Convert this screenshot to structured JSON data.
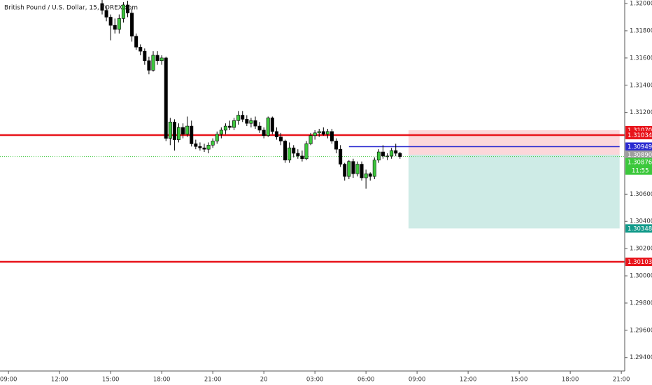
{
  "chart_data": {
    "type": "candlestick",
    "title": "British Pound / U.S. Dollar, 15, FOREX.com",
    "x": [
      14.5,
      14.75,
      15,
      15.25,
      15.5,
      15.75,
      16,
      16.25,
      16.5,
      16.75,
      17,
      17.25,
      17.5,
      17.75,
      18,
      18.25,
      18.5,
      18.75,
      19,
      19.25,
      19.5,
      19.75,
      20,
      20.25,
      20.5,
      20.75,
      21,
      21.25,
      21.5,
      21.75,
      22,
      22.25,
      22.5,
      22.75,
      23,
      23.25,
      23.5,
      23.75,
      24,
      24.25,
      24.5,
      24.75,
      25,
      25.25,
      25.5,
      25.75,
      26,
      26.25,
      26.5,
      26.75,
      27,
      27.25,
      27.5,
      27.75,
      28,
      28.25,
      28.5,
      28.75,
      29,
      29.25,
      29.5,
      29.75,
      30,
      30.25,
      30.5,
      30.75,
      31,
      31.25,
      31.5,
      31.75,
      32
    ],
    "open": [
      1.32,
      1.3195,
      1.319,
      1.3184,
      1.3181,
      1.3189,
      1.3199,
      1.3193,
      1.3176,
      1.3168,
      1.3165,
      1.3158,
      1.3151,
      1.3162,
      1.3158,
      1.316,
      1.3101,
      1.3113,
      1.31,
      1.3109,
      1.3104,
      1.311,
      1.3097,
      1.3095,
      1.3094,
      1.3093,
      1.3096,
      1.3099,
      1.3104,
      1.3107,
      1.311,
      1.3109,
      1.3114,
      1.3118,
      1.3115,
      1.3112,
      1.3114,
      1.311,
      1.3107,
      1.3103,
      1.3116,
      1.3106,
      1.3102,
      1.3099,
      1.3085,
      1.3094,
      1.309,
      1.3088,
      1.3086,
      1.3097,
      1.3103,
      1.3105,
      1.3106,
      1.3104,
      1.3106,
      1.3099,
      1.3093,
      1.3082,
      1.3073,
      1.3084,
      1.3075,
      1.3082,
      1.3072,
      1.3075,
      1.3073,
      1.3085,
      1.3091,
      1.3088,
      1.3088,
      1.3092,
      1.309
    ],
    "high": [
      1.3206,
      1.3198,
      1.3192,
      1.3189,
      1.3192,
      1.3201,
      1.3202,
      1.3196,
      1.3178,
      1.317,
      1.3167,
      1.3161,
      1.3165,
      1.3165,
      1.3162,
      1.3161,
      1.3116,
      1.3115,
      1.3112,
      1.3112,
      1.3117,
      1.3114,
      1.31,
      1.3098,
      1.3097,
      1.3098,
      1.3101,
      1.3106,
      1.3109,
      1.3112,
      1.3114,
      1.3116,
      1.3121,
      1.3121,
      1.3118,
      1.3116,
      1.3117,
      1.3113,
      1.3109,
      1.3117,
      1.3117,
      1.3109,
      1.3105,
      1.31,
      1.3098,
      1.3096,
      1.3093,
      1.3092,
      1.3099,
      1.3105,
      1.3107,
      1.3108,
      1.3109,
      1.3108,
      1.3108,
      1.3101,
      1.3096,
      1.3083,
      1.3085,
      1.3086,
      1.3084,
      1.3084,
      1.3078,
      1.3076,
      1.3087,
      1.3093,
      1.3096,
      1.309,
      1.3094,
      1.3097,
      1.3091
    ],
    "low": [
      1.3192,
      1.3187,
      1.3173,
      1.3178,
      1.3178,
      1.3186,
      1.319,
      1.3172,
      1.3166,
      1.3162,
      1.3155,
      1.3148,
      1.315,
      1.3155,
      1.3155,
      1.3099,
      1.3096,
      1.3092,
      1.3098,
      1.3101,
      1.3102,
      1.3095,
      1.3093,
      1.3092,
      1.3091,
      1.309,
      1.3094,
      1.3097,
      1.3101,
      1.3104,
      1.3107,
      1.3107,
      1.3111,
      1.3113,
      1.311,
      1.3109,
      1.3108,
      1.3105,
      1.3101,
      1.3102,
      1.3104,
      1.31,
      1.3096,
      1.3083,
      1.3083,
      1.3087,
      1.3086,
      1.3084,
      1.3085,
      1.3096,
      1.31,
      1.3102,
      1.3103,
      1.3101,
      1.3097,
      1.309,
      1.308,
      1.307,
      1.3071,
      1.3072,
      1.3073,
      1.307,
      1.3064,
      1.307,
      1.3071,
      1.3083,
      1.3086,
      1.3085,
      1.3086,
      1.3088,
      1.3086
    ],
    "close": [
      1.3195,
      1.319,
      1.3184,
      1.3181,
      1.3189,
      1.3199,
      1.3193,
      1.3176,
      1.3168,
      1.3165,
      1.3158,
      1.3151,
      1.3162,
      1.3158,
      1.316,
      1.3101,
      1.3113,
      1.31,
      1.3109,
      1.3104,
      1.311,
      1.3097,
      1.3095,
      1.3094,
      1.3093,
      1.3096,
      1.3099,
      1.3104,
      1.3107,
      1.311,
      1.3109,
      1.3114,
      1.3118,
      1.3115,
      1.3112,
      1.3114,
      1.311,
      1.3107,
      1.3103,
      1.3116,
      1.3106,
      1.3102,
      1.3099,
      1.3085,
      1.3094,
      1.309,
      1.3088,
      1.3086,
      1.3097,
      1.3103,
      1.3105,
      1.3106,
      1.3104,
      1.3106,
      1.3099,
      1.3093,
      1.3082,
      1.3073,
      1.3084,
      1.3075,
      1.3082,
      1.3072,
      1.3075,
      1.3073,
      1.3085,
      1.3091,
      1.3088,
      1.3088,
      1.3092,
      1.309,
      1.30876
    ],
    "up_color": "#3dc83d",
    "down_color": "#000000",
    "xlim": [
      8.5,
      45.2
    ],
    "ylim": [
      1.29301,
      1.32026
    ],
    "xticks": [
      {
        "value": 9,
        "label": "09:00"
      },
      {
        "value": 12,
        "label": "12:00"
      },
      {
        "value": 15,
        "label": "15:00"
      },
      {
        "value": 18,
        "label": "18:00"
      },
      {
        "value": 21,
        "label": "21:00"
      },
      {
        "value": 24,
        "label": "20"
      },
      {
        "value": 27,
        "label": "03:00"
      },
      {
        "value": 30,
        "label": "06:00"
      },
      {
        "value": 33,
        "label": "09:00"
      },
      {
        "value": 36,
        "label": "12:00"
      },
      {
        "value": 39,
        "label": "15:00"
      },
      {
        "value": 42,
        "label": "18:00"
      },
      {
        "value": 45,
        "label": "21:00"
      }
    ],
    "yticks": [
      {
        "value": 1.32,
        "label": "1.32000"
      },
      {
        "value": 1.318,
        "label": "1.31800"
      },
      {
        "value": 1.316,
        "label": "1.31600"
      },
      {
        "value": 1.314,
        "label": "1.31400"
      },
      {
        "value": 1.312,
        "label": "1.31200"
      },
      {
        "value": 1.306,
        "label": "1.30600"
      },
      {
        "value": 1.304,
        "label": "1.30400"
      },
      {
        "value": 1.302,
        "label": "1.30200"
      },
      {
        "value": 1.3,
        "label": "1.30000"
      },
      {
        "value": 1.298,
        "label": "1.29800"
      },
      {
        "value": 1.296,
        "label": "1.29600"
      },
      {
        "value": 1.294,
        "label": "1.29400"
      }
    ],
    "levels": [
      {
        "value": 1.31034,
        "color": "#e8141b"
      },
      {
        "value": 1.30103,
        "color": "#e8141b"
      }
    ],
    "entry_line": {
      "value": 1.30949,
      "x_start": 29.0,
      "color": "#2a2ad0"
    },
    "position": {
      "x_range": [
        32.5,
        44.9
      ],
      "stop": {
        "value": 1.3107,
        "label": "1.31070"
      },
      "entry": {
        "value": 1.3089,
        "label": "1.30890"
      },
      "target": 1.30348,
      "stop_color": "#e8141b",
      "entry_color": "#9e9e9e",
      "target_color": "#129a8a"
    },
    "current_price": {
      "value": 1.30876,
      "countdown": "11:55",
      "color": "#3cc83c"
    }
  }
}
